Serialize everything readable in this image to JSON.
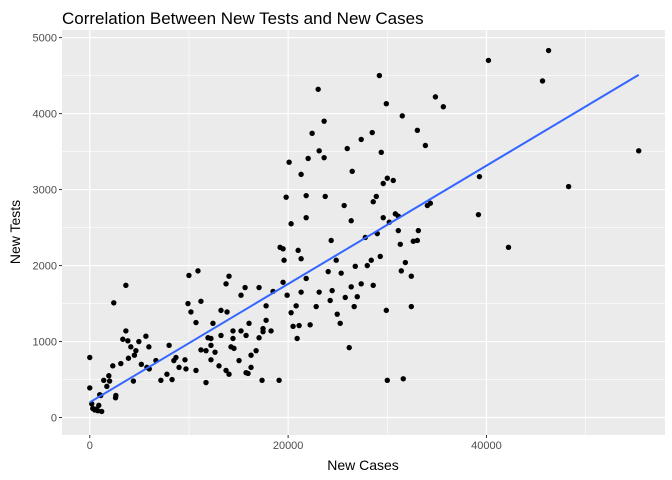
{
  "chart_data": {
    "type": "scatter",
    "title": "Correlation Between New Tests and New Cases",
    "xlabel": "New Cases",
    "ylabel": "New Tests",
    "xlim": [
      -2800,
      58000
    ],
    "ylim": [
      -230,
      5100
    ],
    "xticks": [
      0,
      20000,
      40000
    ],
    "xtick_labels": [
      "0",
      "20000",
      "40000"
    ],
    "yticks": [
      0,
      1000,
      2000,
      3000,
      4000,
      5000
    ],
    "ytick_labels": [
      "0",
      "1000",
      "2000",
      "3000",
      "4000",
      "5000"
    ],
    "grid": true,
    "point_color": "#000000",
    "smooth_color": "#3366FF",
    "panel_color": "#EBEBEB",
    "smooth": {
      "x": [
        0,
        55350
      ],
      "y": [
        200,
        4510
      ]
    },
    "points": [
      [
        29200,
        4500
      ],
      [
        29900,
        4130
      ],
      [
        31510,
        3970
      ],
      [
        28480,
        3750
      ],
      [
        27370,
        3660
      ],
      [
        33030,
        3780
      ],
      [
        33840,
        3580
      ],
      [
        34850,
        4220
      ],
      [
        35650,
        4090
      ],
      [
        40200,
        4700
      ],
      [
        46260,
        4830
      ],
      [
        45650,
        4430
      ],
      [
        55350,
        3510
      ],
      [
        48280,
        3040
      ],
      [
        39290,
        3170
      ],
      [
        39190,
        2670
      ],
      [
        42220,
        2240
      ],
      [
        34340,
        2820
      ],
      [
        34040,
        2790
      ],
      [
        33130,
        2460
      ],
      [
        32620,
        2320
      ],
      [
        32420,
        1860
      ],
      [
        31820,
        2040
      ],
      [
        31310,
        2280
      ],
      [
        31110,
        2650
      ],
      [
        30600,
        3120
      ],
      [
        30000,
        3150
      ],
      [
        29590,
        3080
      ],
      [
        29390,
        3490
      ],
      [
        28580,
        2840
      ],
      [
        29290,
        2120
      ],
      [
        28580,
        1740
      ],
      [
        29590,
        2630
      ],
      [
        28990,
        2420
      ],
      [
        29900,
        1410
      ],
      [
        30000,
        490
      ],
      [
        31610,
        510
      ],
      [
        32420,
        1460
      ],
      [
        33030,
        2330
      ],
      [
        31410,
        1930
      ],
      [
        31110,
        2460
      ],
      [
        30810,
        2680
      ],
      [
        30200,
        2570
      ],
      [
        28890,
        2910
      ],
      [
        28380,
        2070
      ],
      [
        27780,
        2370
      ],
      [
        27370,
        1760
      ],
      [
        26660,
        1460
      ],
      [
        26360,
        2590
      ],
      [
        25960,
        3540
      ],
      [
        26460,
        3240
      ],
      [
        25650,
        2790
      ],
      [
        26770,
        1990
      ],
      [
        25250,
        1240
      ],
      [
        26160,
        920
      ],
      [
        26360,
        1720
      ],
      [
        27980,
        2000
      ],
      [
        26970,
        1590
      ],
      [
        25350,
        1900
      ],
      [
        24240,
        1540
      ],
      [
        24850,
        2070
      ],
      [
        24340,
        2330
      ],
      [
        25760,
        1580
      ],
      [
        24950,
        1360
      ],
      [
        24440,
        1670
      ],
      [
        23740,
        2910
      ],
      [
        23630,
        3420
      ],
      [
        24040,
        1920
      ],
      [
        23130,
        1650
      ],
      [
        22220,
        1220
      ],
      [
        22830,
        1460
      ],
      [
        23630,
        3900
      ],
      [
        23030,
        4320
      ],
      [
        23130,
        3510
      ],
      [
        22420,
        3740
      ],
      [
        22020,
        3410
      ],
      [
        21820,
        2920
      ],
      [
        21820,
        2630
      ],
      [
        21310,
        3200
      ],
      [
        21010,
        2200
      ],
      [
        20300,
        2550
      ],
      [
        19800,
        2900
      ],
      [
        20100,
        3360
      ],
      [
        21310,
        2090
      ],
      [
        21820,
        1830
      ],
      [
        21310,
        1650
      ],
      [
        20810,
        1470
      ],
      [
        21110,
        1210
      ],
      [
        20910,
        1040
      ],
      [
        20500,
        1200
      ],
      [
        20300,
        1380
      ],
      [
        19900,
        1610
      ],
      [
        19490,
        1780
      ],
      [
        19090,
        490
      ],
      [
        19590,
        2070
      ],
      [
        19490,
        2220
      ],
      [
        19190,
        2240
      ],
      [
        18480,
        1660
      ],
      [
        17780,
        1470
      ],
      [
        17470,
        1170
      ],
      [
        17070,
        1710
      ],
      [
        16770,
        880
      ],
      [
        16260,
        820
      ],
      [
        15660,
        1710
      ],
      [
        15760,
        590
      ],
      [
        15250,
        1610
      ],
      [
        15960,
        580
      ],
      [
        14440,
        1040
      ],
      [
        14440,
        1140
      ],
      [
        14040,
        1860
      ],
      [
        13740,
        1760
      ],
      [
        13230,
        1410
      ],
      [
        12420,
        1240
      ],
      [
        12220,
        1040
      ],
      [
        11210,
        1530
      ],
      [
        10910,
        1930
      ],
      [
        10000,
        1870
      ],
      [
        10200,
        1390
      ],
      [
        9900,
        1500
      ],
      [
        9600,
        760
      ],
      [
        8690,
        790
      ],
      [
        7780,
        570
      ],
      [
        12220,
        760
      ],
      [
        11720,
        460
      ],
      [
        11720,
        880
      ],
      [
        12220,
        950
      ],
      [
        11210,
        890
      ],
      [
        10710,
        1250
      ],
      [
        13030,
        680
      ],
      [
        13230,
        1080
      ],
      [
        13840,
        1390
      ],
      [
        14240,
        930
      ],
      [
        15050,
        750
      ],
      [
        14040,
        570
      ],
      [
        16260,
        660
      ],
      [
        17370,
        490
      ],
      [
        17470,
        1130
      ],
      [
        17780,
        1280
      ],
      [
        18280,
        1140
      ],
      [
        16060,
        1240
      ],
      [
        17070,
        1050
      ],
      [
        15760,
        1080
      ],
      [
        15250,
        1140
      ],
      [
        14540,
        910
      ],
      [
        13740,
        620
      ],
      [
        12630,
        860
      ],
      [
        11920,
        1050
      ],
      [
        10710,
        620
      ],
      [
        9700,
        640
      ],
      [
        8480,
        750
      ],
      [
        7170,
        490
      ],
      [
        6670,
        750
      ],
      [
        5760,
        660
      ],
      [
        5960,
        930
      ],
      [
        5660,
        1070
      ],
      [
        4950,
        1000
      ],
      [
        4650,
        880
      ],
      [
        3840,
        1010
      ],
      [
        3640,
        1140
      ],
      [
        3330,
        1030
      ],
      [
        4140,
        930
      ],
      [
        3130,
        710
      ],
      [
        2320,
        680
      ],
      [
        1920,
        550
      ],
      [
        1720,
        410
      ],
      [
        1410,
        490
      ],
      [
        1110,
        290
      ],
      [
        910,
        160
      ],
      [
        610,
        110
      ],
      [
        200,
        180
      ],
      [
        300,
        120
      ],
      [
        0,
        390
      ],
      [
        0,
        790
      ],
      [
        810,
        90
      ],
      [
        2630,
        290
      ],
      [
        2420,
        1510
      ],
      [
        3640,
        1740
      ],
      [
        1200,
        80
      ],
      [
        500,
        100
      ],
      [
        2600,
        260
      ],
      [
        4500,
        820
      ],
      [
        3900,
        780
      ],
      [
        5200,
        700
      ],
      [
        6000,
        640
      ],
      [
        8000,
        950
      ],
      [
        8300,
        500
      ],
      [
        9000,
        660
      ],
      [
        2000,
        480
      ],
      [
        1000,
        300
      ],
      [
        4400,
        480
      ]
    ]
  }
}
